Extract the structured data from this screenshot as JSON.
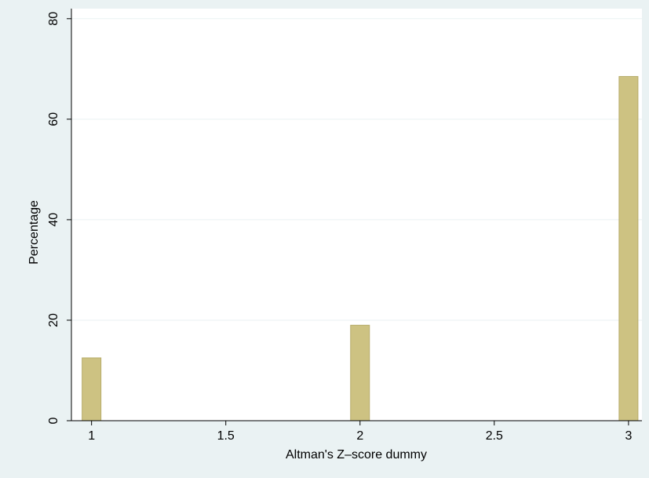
{
  "chart_data": {
    "type": "bar",
    "title": "",
    "xlabel": "Altman's Z–score dummy",
    "ylabel": "Percentage",
    "x": [
      1,
      2,
      3
    ],
    "values": [
      12.5,
      19.0,
      68.5
    ],
    "xlim": [
      0.925,
      3.05
    ],
    "ylim": [
      0,
      82
    ],
    "xticks": [
      1,
      1.5,
      2,
      2.5,
      3
    ],
    "xtick_labels": [
      "1",
      "1.5",
      "2",
      "2.5",
      "3"
    ],
    "yticks": [
      0,
      20,
      40,
      60,
      80
    ],
    "ytick_labels": [
      "0",
      "20",
      "40",
      "60",
      "80"
    ],
    "grid": true,
    "colors": {
      "bar_fill": "#cdc282",
      "bar_stroke": "#b7ac6b",
      "plot_bg": "#ffffff",
      "outer_bg": "#eaf2f3",
      "grid": "#eaf2f3",
      "axis": "#000000"
    }
  }
}
